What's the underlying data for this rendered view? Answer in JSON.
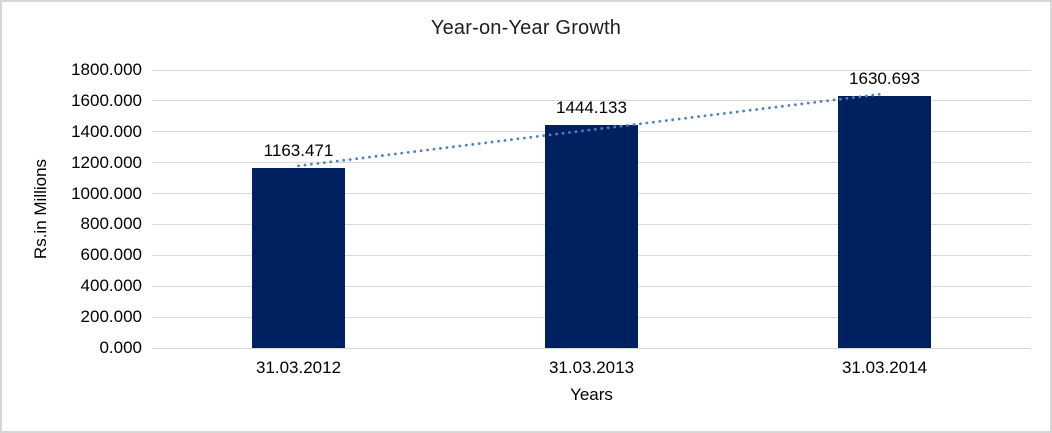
{
  "window": {
    "background": "#FFFFFF",
    "border_color": "#D6D6D6"
  },
  "chart_data": {
    "type": "bar",
    "title": "Year-on-Year Growth",
    "xlabel": "Years",
    "ylabel": "Rs.in Millions",
    "categories": [
      "31.03.2012",
      "31.03.2013",
      "31.03.2014"
    ],
    "values": [
      1163.471,
      1444.133,
      1630.693
    ],
    "value_labels": [
      "1163.471",
      "1444.133",
      "1630.693"
    ],
    "ylim": [
      0,
      1800
    ],
    "y_tick_values": [
      0,
      200,
      400,
      600,
      800,
      1000,
      1200,
      1400,
      1600,
      1800
    ],
    "y_tick_labels": [
      "0.000",
      "200.000",
      "400.000",
      "600.000",
      "800.000",
      "1000.000",
      "1200.000",
      "1400.000",
      "1600.000",
      "1800.000"
    ],
    "grid": true,
    "legend": "none",
    "bar_color": "#002060",
    "gridline_color": "#D9D9D9",
    "label_color": "#000000",
    "title_color": "#1F1F1F",
    "trendline": {
      "type": "linear",
      "style": "dotted",
      "color": "#4F81BD"
    }
  }
}
